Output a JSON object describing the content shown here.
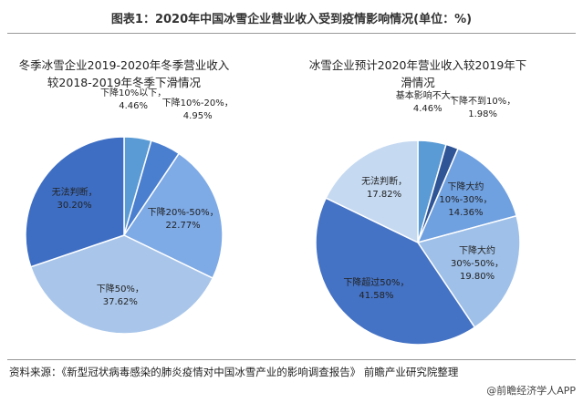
{
  "title": "图表1：2020年中国冰雪企业营业收入受到疫情影响情况(单位：%)",
  "source": "资料来源：《新型冠状病毒感染的肺炎疫情对中国冰雪产业的影响调查报告》 前瞻产业研究院整理",
  "credit": "@前瞻经济学人APP",
  "chart_data": [
    {
      "type": "pie",
      "title": "冬季冰雪企业2019-2020年冬季营业收入较2018-2019年冬季下滑情况",
      "categories": [
        "下降10%以下，",
        "下降10%-20%，",
        "下降20%-50%，",
        "下降50%，",
        "无法判断，"
      ],
      "values": [
        4.46,
        4.95,
        22.77,
        37.62,
        30.2
      ],
      "value_labels": [
        "4.46%",
        "4.95%",
        "22.77%",
        "37.62%",
        "30.20%"
      ],
      "colors": [
        "#5b9bd5",
        "#4a7fd0",
        "#7eaae6",
        "#a9c6ea",
        "#3e6ec3"
      ]
    },
    {
      "type": "pie",
      "title": "冰雪企业预计2020年营业收入较2019年下滑情况",
      "categories": [
        "基本影响不大，",
        "下降不到10%，",
        "下降大约10%-30%，",
        "下降大约30%-50%，",
        "下降超过50%，",
        "无法判断，"
      ],
      "values": [
        4.46,
        1.98,
        14.36,
        19.8,
        41.58,
        17.82
      ],
      "value_labels": [
        "4.46%",
        "1.98%",
        "14.36%",
        "19.80%",
        "41.58%",
        "17.82%"
      ],
      "colors": [
        "#5b9bd5",
        "#2f5597",
        "#6fa0e0",
        "#9fc0e8",
        "#4472c4",
        "#c5d9f1"
      ]
    }
  ]
}
